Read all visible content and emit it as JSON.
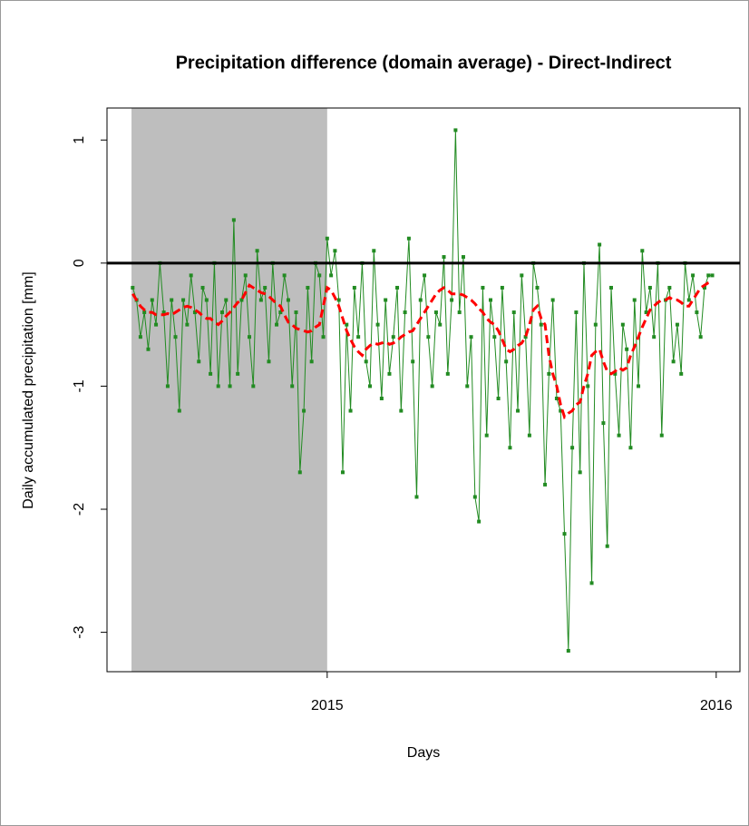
{
  "chart_data": {
    "type": "line",
    "title": "Precipitation difference (domain average) - Direct-Indirect",
    "xlabel": "Days",
    "ylabel": "Daily accumulated precipitation [mm]",
    "xlim": [
      2014.434,
      2016.061
    ],
    "ylim": [
      -3.32,
      1.26
    ],
    "xticks": [
      2015,
      2016
    ],
    "yticks": [
      -3,
      -2,
      -1,
      0,
      1
    ],
    "shade": {
      "x": [
        2014.497,
        2015.0
      ],
      "color": "#bebebe"
    },
    "hline": {
      "value": 0,
      "color": "#000000"
    },
    "x": [
      2014.5,
      2014.51,
      2014.52,
      2014.53,
      2014.54,
      2014.55,
      2014.56,
      2014.57,
      2014.58,
      2014.59,
      2014.6,
      2014.61,
      2014.62,
      2014.63,
      2014.64,
      2014.65,
      2014.66,
      2014.67,
      2014.68,
      2014.69,
      2014.7,
      2014.71,
      2014.72,
      2014.73,
      2014.74,
      2014.75,
      2014.76,
      2014.77,
      2014.78,
      2014.79,
      2014.8,
      2014.81,
      2014.82,
      2014.83,
      2014.84,
      2014.85,
      2014.86,
      2014.87,
      2014.88,
      2014.89,
      2014.9,
      2014.91,
      2014.92,
      2014.93,
      2014.94,
      2014.95,
      2014.96,
      2014.97,
      2014.98,
      2014.99,
      2015.0,
      2015.01,
      2015.02,
      2015.03,
      2015.04,
      2015.05,
      2015.06,
      2015.07,
      2015.08,
      2015.09,
      2015.1,
      2015.11,
      2015.12,
      2015.13,
      2015.14,
      2015.15,
      2015.16,
      2015.17,
      2015.18,
      2015.19,
      2015.2,
      2015.21,
      2015.22,
      2015.23,
      2015.24,
      2015.25,
      2015.26,
      2015.27,
      2015.28,
      2015.29,
      2015.3,
      2015.31,
      2015.32,
      2015.33,
      2015.34,
      2015.35,
      2015.36,
      2015.37,
      2015.38,
      2015.39,
      2015.4,
      2015.41,
      2015.42,
      2015.43,
      2015.44,
      2015.45,
      2015.46,
      2015.47,
      2015.48,
      2015.49,
      2015.5,
      2015.51,
      2015.52,
      2015.53,
      2015.54,
      2015.55,
      2015.56,
      2015.57,
      2015.58,
      2015.59,
      2015.6,
      2015.61,
      2015.62,
      2015.63,
      2015.64,
      2015.65,
      2015.66,
      2015.67,
      2015.68,
      2015.69,
      2015.7,
      2015.71,
      2015.72,
      2015.73,
      2015.74,
      2015.75,
      2015.76,
      2015.77,
      2015.78,
      2015.79,
      2015.8,
      2015.81,
      2015.82,
      2015.83,
      2015.84,
      2015.85,
      2015.86,
      2015.87,
      2015.88,
      2015.89,
      2015.9,
      2015.91,
      2015.92,
      2015.93,
      2015.94,
      2015.95,
      2015.96,
      2015.97,
      2015.98,
      2015.99
    ],
    "series": [
      {
        "color": "#228b22",
        "style": "points-line",
        "values": [
          -0.2,
          -0.3,
          -0.6,
          -0.4,
          -0.7,
          -0.3,
          -0.5,
          0.0,
          -0.4,
          -1.0,
          -0.3,
          -0.6,
          -1.2,
          -0.3,
          -0.5,
          -0.1,
          -0.4,
          -0.8,
          -0.2,
          -0.3,
          -0.9,
          0.0,
          -1.0,
          -0.4,
          -0.3,
          -1.0,
          0.35,
          -0.9,
          -0.3,
          -0.1,
          -0.6,
          -1.0,
          0.1,
          -0.3,
          -0.2,
          -0.8,
          0.0,
          -0.5,
          -0.4,
          -0.1,
          -0.3,
          -1.0,
          -0.4,
          -1.7,
          -1.2,
          -0.2,
          -0.8,
          0.0,
          -0.1,
          -0.6,
          0.2,
          -0.1,
          0.1,
          -0.3,
          -1.7,
          -0.5,
          -1.2,
          -0.2,
          -0.6,
          0.0,
          -0.8,
          -1.0,
          0.1,
          -0.5,
          -1.1,
          -0.3,
          -0.9,
          -0.6,
          -0.2,
          -1.2,
          -0.4,
          0.2,
          -0.8,
          -1.9,
          -0.3,
          -0.1,
          -0.6,
          -1.0,
          -0.4,
          -0.5,
          0.05,
          -0.9,
          -0.3,
          1.08,
          -0.4,
          0.05,
          -1.0,
          -0.6,
          -1.9,
          -2.1,
          -0.2,
          -1.4,
          -0.3,
          -0.6,
          -1.1,
          -0.2,
          -0.8,
          -1.5,
          -0.4,
          -1.2,
          -0.1,
          -0.6,
          -1.4,
          0.0,
          -0.2,
          -0.5,
          -1.8,
          -0.9,
          -0.3,
          -1.1,
          -1.2,
          -2.2,
          -3.15,
          -1.5,
          -0.4,
          -1.7,
          0.0,
          -1.0,
          -2.6,
          -0.5,
          0.15,
          -1.3,
          -2.3,
          -0.2,
          -0.9,
          -1.4,
          -0.5,
          -0.7,
          -1.5,
          -0.3,
          -1.0,
          0.1,
          -0.4,
          -0.2,
          -0.6,
          0.0,
          -1.4,
          -0.3,
          -0.2,
          -0.8,
          -0.5,
          -0.9,
          0.0,
          -0.3,
          -0.1,
          -0.4,
          -0.6,
          -0.2,
          -0.1,
          -0.1
        ]
      },
      {
        "color": "#ff0000",
        "style": "dashed",
        "values": [
          -0.25,
          -0.3,
          -0.35,
          -0.38,
          -0.4,
          -0.4,
          -0.42,
          -0.42,
          -0.42,
          -0.41,
          -0.42,
          -0.4,
          -0.38,
          -0.36,
          -0.35,
          -0.36,
          -0.38,
          -0.4,
          -0.43,
          -0.45,
          -0.45,
          -0.48,
          -0.5,
          -0.47,
          -0.43,
          -0.4,
          -0.36,
          -0.32,
          -0.3,
          -0.24,
          -0.18,
          -0.2,
          -0.22,
          -0.24,
          -0.25,
          -0.27,
          -0.3,
          -0.33,
          -0.35,
          -0.42,
          -0.48,
          -0.5,
          -0.53,
          -0.54,
          -0.55,
          -0.56,
          -0.55,
          -0.52,
          -0.5,
          -0.35,
          -0.2,
          -0.22,
          -0.28,
          -0.35,
          -0.45,
          -0.55,
          -0.62,
          -0.68,
          -0.72,
          -0.75,
          -0.7,
          -0.67,
          -0.65,
          -0.66,
          -0.65,
          -0.64,
          -0.66,
          -0.65,
          -0.63,
          -0.6,
          -0.58,
          -0.56,
          -0.55,
          -0.5,
          -0.45,
          -0.4,
          -0.35,
          -0.3,
          -0.25,
          -0.22,
          -0.2,
          -0.22,
          -0.25,
          -0.25,
          -0.25,
          -0.26,
          -0.28,
          -0.3,
          -0.33,
          -0.37,
          -0.4,
          -0.45,
          -0.48,
          -0.5,
          -0.55,
          -0.62,
          -0.7,
          -0.72,
          -0.7,
          -0.67,
          -0.65,
          -0.6,
          -0.5,
          -0.38,
          -0.35,
          -0.45,
          -0.5,
          -0.75,
          -0.9,
          -1.0,
          -1.15,
          -1.25,
          -1.22,
          -1.2,
          -1.15,
          -1.13,
          -1.0,
          -0.9,
          -0.75,
          -0.72,
          -0.7,
          -0.8,
          -0.88,
          -0.9,
          -0.88,
          -0.85,
          -0.87,
          -0.85,
          -0.75,
          -0.68,
          -0.6,
          -0.52,
          -0.45,
          -0.38,
          -0.35,
          -0.32,
          -0.3,
          -0.3,
          -0.28,
          -0.3,
          -0.3,
          -0.32,
          -0.35,
          -0.35,
          -0.3,
          -0.25,
          -0.2,
          -0.18,
          -0.16,
          -0.15
        ]
      }
    ]
  }
}
